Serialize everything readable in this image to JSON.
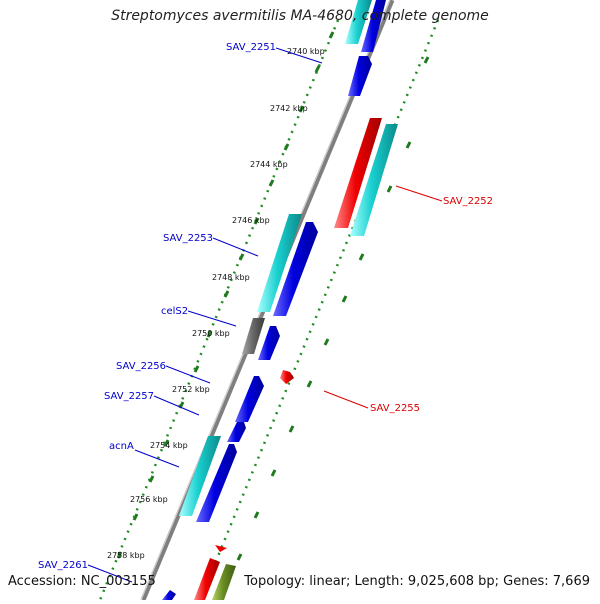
{
  "title": "Streptomyces avermitilis MA-4680, complete genome",
  "footer": {
    "accession": "Accession: NC_003155",
    "summary": "Topology: linear; Length: 9,025,608 bp; Genes: 7,669"
  },
  "ticks": [
    {
      "kbp": 2740,
      "label": "2740 kbp"
    },
    {
      "kbp": 2742,
      "label": "2742 kbp"
    },
    {
      "kbp": 2744,
      "label": "2744 kbp"
    },
    {
      "kbp": 2746,
      "label": "2746 kbp"
    },
    {
      "kbp": 2748,
      "label": "2748 kbp"
    },
    {
      "kbp": 2750,
      "label": "2750 kbp"
    },
    {
      "kbp": 2752,
      "label": "2752 kbp"
    },
    {
      "kbp": 2754,
      "label": "2754 kbp"
    },
    {
      "kbp": 2756,
      "label": "2756 kbp"
    },
    {
      "kbp": 2758,
      "label": "2758 kbp"
    }
  ],
  "gene_labels": [
    {
      "text": "SAV_2251",
      "color": "#0000cc"
    },
    {
      "text": "SAV_2252",
      "color": "#dd0000"
    },
    {
      "text": "SAV_2253",
      "color": "#0000cc"
    },
    {
      "text": "celS2",
      "color": "#0000cc"
    },
    {
      "text": "SAV_2255",
      "color": "#dd0000"
    },
    {
      "text": "SAV_2256",
      "color": "#0000cc"
    },
    {
      "text": "SAV_2257",
      "color": "#0000cc"
    },
    {
      "text": "acnA",
      "color": "#0000cc"
    },
    {
      "text": "SAV_2261",
      "color": "#0000cc"
    }
  ],
  "colors": {
    "backbone": "#8c8c8c",
    "dotted_track": "#228b22",
    "forward_gene": "#0000dd",
    "cyan_gene": "#17c8c8",
    "red_gene": "#ee0000",
    "grey_gene": "#6a6a6a",
    "olive_gene": "#6b8e23"
  }
}
